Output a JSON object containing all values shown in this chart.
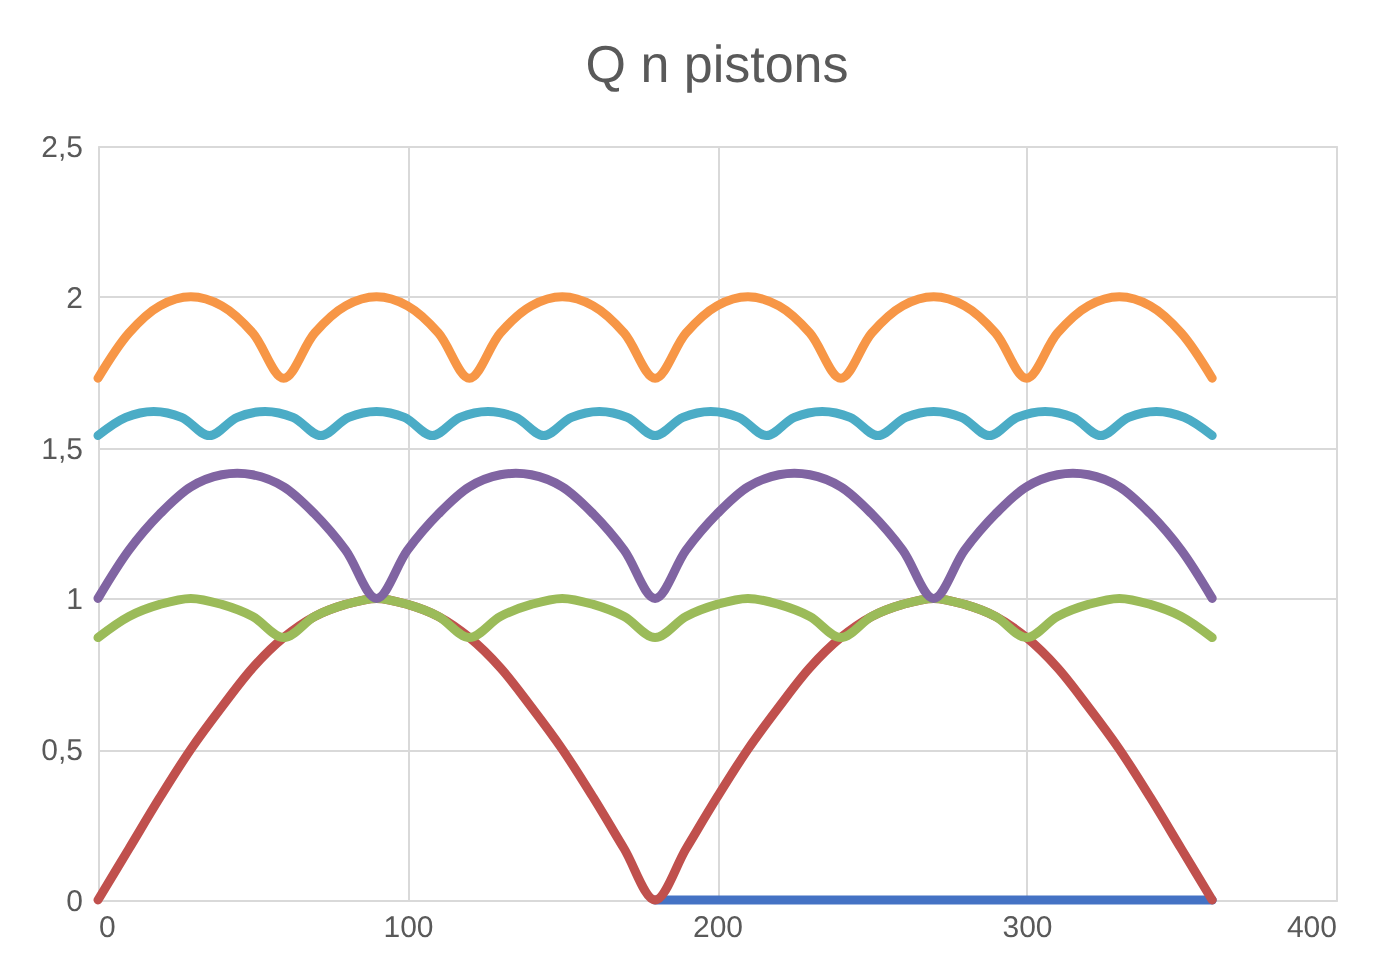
{
  "chart_data": {
    "type": "line",
    "title": "Q n pistons",
    "x": [
      0,
      10,
      20,
      30,
      40,
      50,
      60,
      70,
      80,
      90,
      100,
      110,
      120,
      130,
      140,
      150,
      160,
      170,
      180,
      190,
      200,
      210,
      220,
      230,
      240,
      250,
      260,
      270,
      280,
      290,
      300,
      310,
      320,
      330,
      340,
      350,
      360
    ],
    "series": [
      {
        "color": "#4472c4",
        "values": [
          null,
          null,
          null,
          null,
          null,
          null,
          null,
          null,
          null,
          null,
          null,
          null,
          null,
          null,
          null,
          null,
          null,
          null,
          0,
          0,
          0,
          0,
          0,
          0,
          0,
          0,
          0,
          0,
          0,
          0,
          0,
          0,
          0,
          0,
          0,
          0,
          0
        ]
      },
      {
        "color": "#c0504d",
        "values": [
          0,
          0.17,
          0.34,
          0.5,
          0.64,
          0.77,
          0.87,
          0.94,
          0.98,
          1,
          0.98,
          0.94,
          0.87,
          0.77,
          0.64,
          0.5,
          0.34,
          0.17,
          0,
          0.17,
          0.34,
          0.5,
          0.64,
          0.77,
          0.87,
          0.94,
          0.98,
          1,
          0.98,
          0.94,
          0.87,
          0.77,
          0.64,
          0.5,
          0.34,
          0.17,
          0
        ]
      },
      {
        "color": "#9bbb59",
        "values": [
          0.87,
          0.94,
          0.98,
          1,
          0.98,
          0.94,
          0.87,
          0.94,
          0.98,
          1,
          0.98,
          0.94,
          0.87,
          0.94,
          0.98,
          1,
          0.98,
          0.94,
          0.87,
          0.94,
          0.98,
          1,
          0.98,
          0.94,
          0.87,
          0.94,
          0.98,
          1,
          0.98,
          0.94,
          0.87,
          0.94,
          0.98,
          1,
          0.98,
          0.94,
          0.87
        ]
      },
      {
        "color": "#8064a2",
        "values": [
          1,
          1.16,
          1.28,
          1.37,
          1.41,
          1.41,
          1.37,
          1.28,
          1.16,
          1,
          1.16,
          1.28,
          1.37,
          1.41,
          1.41,
          1.37,
          1.28,
          1.16,
          1,
          1.16,
          1.28,
          1.37,
          1.41,
          1.41,
          1.37,
          1.28,
          1.16,
          1,
          1.16,
          1.28,
          1.37,
          1.41,
          1.41,
          1.37,
          1.28,
          1.16,
          1
        ]
      },
      {
        "color": "#4bacc6",
        "x": [
          0,
          9,
          18,
          27,
          36,
          45,
          54,
          63,
          72,
          81,
          90,
          99,
          108,
          117,
          126,
          135,
          144,
          153,
          162,
          171,
          180,
          189,
          198,
          207,
          216,
          225,
          234,
          243,
          252,
          261,
          270,
          279,
          288,
          297,
          306,
          315,
          324,
          333,
          342,
          351,
          360
        ],
        "values": [
          1.54,
          1.6,
          1.62,
          1.6,
          1.54,
          1.6,
          1.62,
          1.6,
          1.54,
          1.6,
          1.62,
          1.6,
          1.54,
          1.6,
          1.62,
          1.6,
          1.54,
          1.6,
          1.62,
          1.6,
          1.54,
          1.6,
          1.62,
          1.6,
          1.54,
          1.6,
          1.62,
          1.6,
          1.54,
          1.6,
          1.62,
          1.6,
          1.54,
          1.6,
          1.62,
          1.6,
          1.54,
          1.6,
          1.62,
          1.6,
          1.54
        ]
      },
      {
        "color": "#f79646",
        "values": [
          1.73,
          1.88,
          1.97,
          2,
          1.97,
          1.88,
          1.73,
          1.88,
          1.97,
          2,
          1.97,
          1.88,
          1.73,
          1.88,
          1.97,
          2,
          1.97,
          1.88,
          1.73,
          1.88,
          1.97,
          2,
          1.97,
          1.88,
          1.73,
          1.88,
          1.97,
          2,
          1.97,
          1.88,
          1.73,
          1.88,
          1.97,
          2,
          1.97,
          1.88,
          1.73
        ]
      }
    ],
    "xlim": [
      0,
      400
    ],
    "xticks": [
      0,
      100,
      200,
      300,
      400
    ],
    "ylim": [
      0,
      2.5
    ],
    "yticks": [
      0,
      {
        "value": 0.5,
        "label": "0,5"
      },
      1,
      {
        "value": 1.5,
        "label": "1,5"
      },
      2,
      {
        "value": 2.5,
        "label": "2,5"
      }
    ],
    "grid": true,
    "marker": "none",
    "line_style": "solid"
  }
}
